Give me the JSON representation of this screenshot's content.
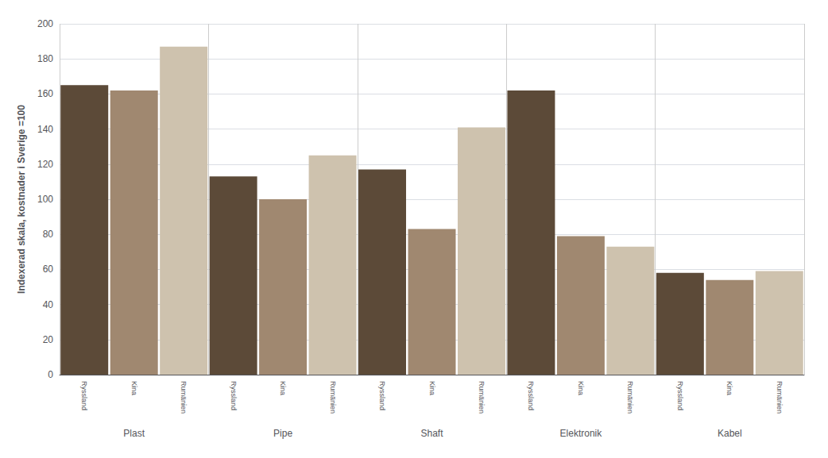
{
  "chart_data": {
    "type": "bar",
    "ylabel": "Indexerad skala, kostnader i Sverige =100",
    "categories": [
      "Plast",
      "Pipe",
      "Shaft",
      "Elektronik",
      "Kabel"
    ],
    "series": [
      {
        "name": "Ryssland",
        "color": "#5c4a38",
        "values": [
          165,
          113,
          117,
          162,
          58
        ]
      },
      {
        "name": "Kina",
        "color": "#a08870",
        "values": [
          162,
          100,
          83,
          79,
          54
        ]
      },
      {
        "name": "Rumänien",
        "color": "#cec2ae",
        "values": [
          187,
          125,
          141,
          73,
          59
        ]
      }
    ],
    "ylim": [
      0,
      200
    ],
    "yticks": [
      0,
      20,
      40,
      60,
      80,
      100,
      120,
      140,
      160,
      180,
      200
    ],
    "grid": true
  }
}
